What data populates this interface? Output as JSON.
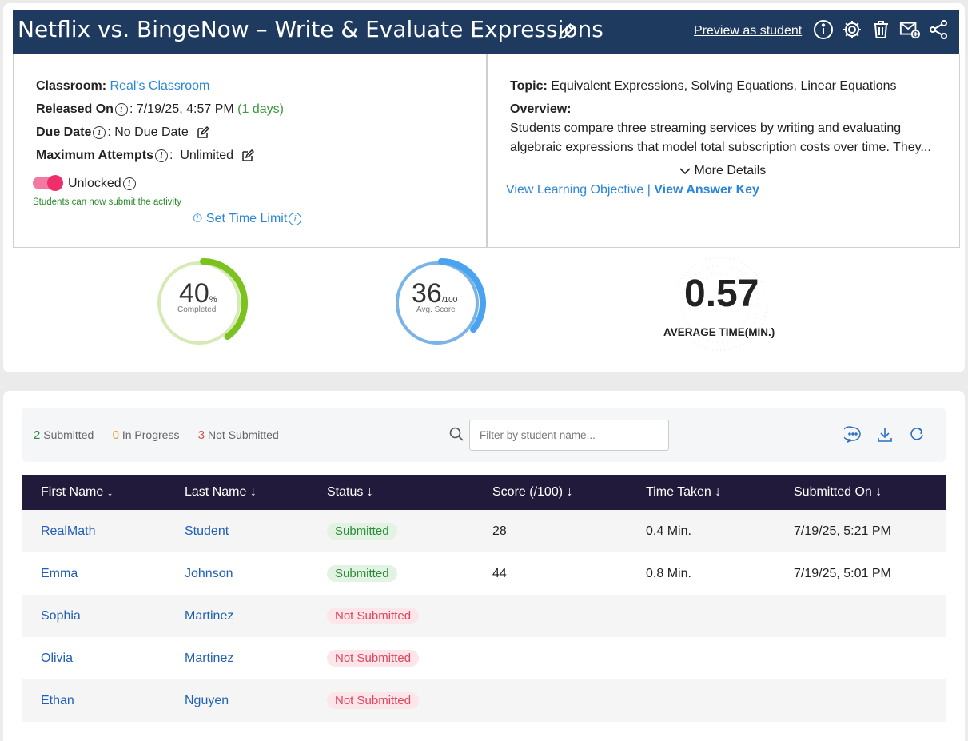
{
  "header": {
    "title": "Netflix vs. BingeNow – Write & Evaluate Expressions",
    "preview_label": "Preview as student"
  },
  "details": {
    "classroom_label": "Classroom:",
    "classroom_value": "Real's Classroom",
    "released_label": "Released On",
    "released_value": ": 7/19/25, 4:57 PM",
    "released_days": "(1 days)",
    "due_label": "Due Date",
    "due_value": ": No Due Date",
    "attempts_label": "Maximum Attempts",
    "attempts_value": ":  Unlimited",
    "lock_label": "Unlocked",
    "lock_note": "Students can now submit the activity",
    "time_limit_label": "⏱ Set Time Limit"
  },
  "overview": {
    "topic_label": "Topic:",
    "topic_value": "Equivalent Expressions, Solving Equations, Linear Equations",
    "overview_label": "Overview:",
    "overview_text": "Students compare three streaming services by writing and evaluating algebraic expressions that model total subscription costs over time. They...",
    "more_details": "More Details",
    "learning_objective": "View Learning Objective",
    "separator": " | ",
    "answer_key": "View Answer Key"
  },
  "stats": {
    "completed_value": "40",
    "completed_unit": "%",
    "completed_label": "Completed",
    "completed_fraction": 0.4,
    "score_value": "36",
    "score_unit": "/100",
    "score_label": "Avg. Score",
    "score_fraction": 0.36,
    "avg_time_value": "0.57",
    "avg_time_label": "AVERAGE TIME(MIN.)",
    "completed_color": "#7cc21f",
    "score_color": "#4aa3f0"
  },
  "summary": {
    "submitted_count": "2",
    "submitted_label": "Submitted",
    "in_progress_count": "0",
    "in_progress_label": "In Progress",
    "not_submitted_count": "3",
    "not_submitted_label": "Not Submitted",
    "search_placeholder": "Filter by student name..."
  },
  "table": {
    "headers": [
      "First Name ↓",
      "Last Name ↓",
      "Status ↓",
      "Score (/100) ↓",
      "Time Taken ↓",
      "Submitted On ↓"
    ],
    "rows": [
      {
        "first": "RealMath",
        "last": "Student",
        "status": "Submitted",
        "score": "28",
        "time": "0.4 Min.",
        "submitted": "7/19/25, 5:21 PM"
      },
      {
        "first": "Emma",
        "last": "Johnson",
        "status": "Submitted",
        "score": "44",
        "time": "0.8 Min.",
        "submitted": "7/19/25, 5:01 PM"
      },
      {
        "first": "Sophia",
        "last": "Martinez",
        "status": "Not Submitted",
        "score": "",
        "time": "",
        "submitted": ""
      },
      {
        "first": "Olivia",
        "last": "Martinez",
        "status": "Not Submitted",
        "score": "",
        "time": "",
        "submitted": ""
      },
      {
        "first": "Ethan",
        "last": "Nguyen",
        "status": "Not Submitted",
        "score": "",
        "time": "",
        "submitted": ""
      }
    ]
  }
}
